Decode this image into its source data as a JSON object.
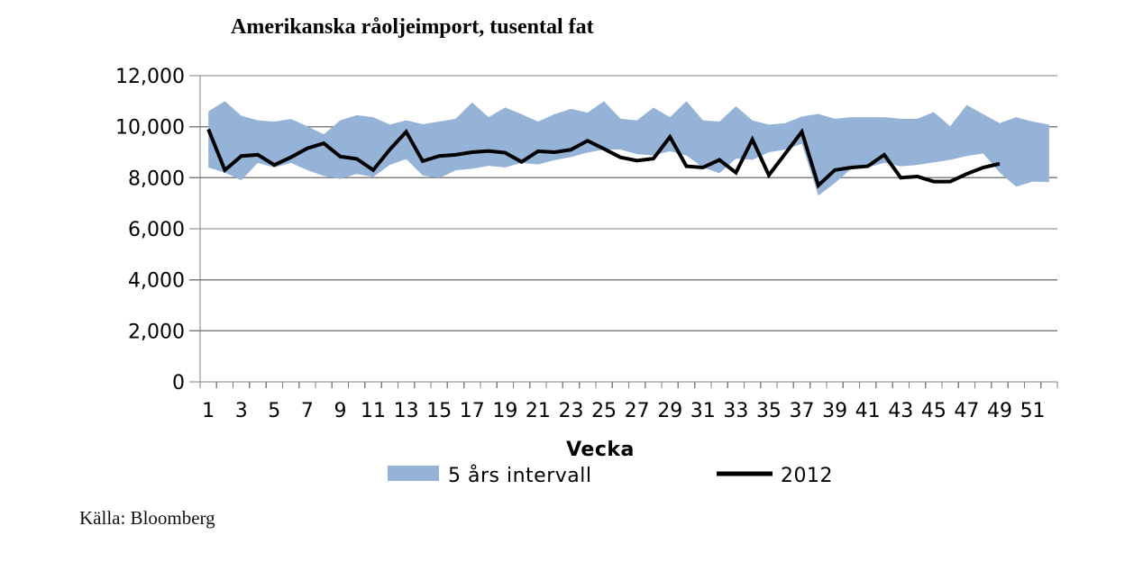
{
  "chart": {
    "title": "Amerikanska råoljeimport, tusental fat",
    "xlabel": "Vecka",
    "ylabel": ""
  },
  "legend": {
    "band_label": "5 års intervall",
    "line_label": "2012"
  },
  "source": "Källa: Bloomberg",
  "colors": {
    "band": "#95B3D7",
    "line": "#000000",
    "axis": "#808080",
    "text": "#000000"
  },
  "chart_data": {
    "type": "area",
    "subtype": "band-with-line",
    "title": "Amerikanska råoljeimport, tusental fat",
    "xlabel": "Vecka",
    "ylabel": "",
    "ylim": [
      0,
      12000
    ],
    "grid": true,
    "legend_position": "bottom",
    "y_ticks": [
      {
        "value": 0,
        "label": "0"
      },
      {
        "value": 2000,
        "label": "2,000"
      },
      {
        "value": 4000,
        "label": "4,000"
      },
      {
        "value": 6000,
        "label": "6,000"
      },
      {
        "value": 8000,
        "label": "8,000"
      },
      {
        "value": 10000,
        "label": "10,000"
      },
      {
        "value": 12000,
        "label": "12,000"
      }
    ],
    "x_tick_labels": [
      "1",
      "3",
      "5",
      "7",
      "9",
      "11",
      "13",
      "15",
      "17",
      "19",
      "21",
      "23",
      "25",
      "27",
      "29",
      "31",
      "33",
      "35",
      "37",
      "39",
      "41",
      "43",
      "45",
      "47",
      "49",
      "51"
    ],
    "x_tick_weeks": [
      1,
      3,
      5,
      7,
      9,
      11,
      13,
      15,
      17,
      19,
      21,
      23,
      25,
      27,
      29,
      31,
      33,
      35,
      37,
      39,
      41,
      43,
      45,
      47,
      49,
      51
    ],
    "weeks": 52,
    "series": [
      {
        "name": "5 års intervall",
        "type": "band",
        "color": "#95B3D7",
        "high": [
          10600,
          11000,
          10430,
          10250,
          10200,
          10300,
          10020,
          9700,
          10250,
          10450,
          10370,
          10080,
          10250,
          10100,
          10200,
          10310,
          10950,
          10370,
          10750,
          10490,
          10200,
          10490,
          10700,
          10550,
          11000,
          10310,
          10250,
          10750,
          10370,
          11000,
          10250,
          10200,
          10800,
          10250,
          10080,
          10140,
          10400,
          10500,
          10310,
          10370,
          10370,
          10370,
          10310,
          10310,
          10570,
          10020,
          10850,
          10490,
          10140,
          10370,
          10200,
          10080
        ],
        "low": [
          8400,
          8200,
          7900,
          8580,
          8400,
          8580,
          8300,
          8070,
          7950,
          8150,
          8030,
          8500,
          8730,
          8090,
          7980,
          8290,
          8350,
          8465,
          8405,
          8580,
          8520,
          8690,
          8810,
          8985,
          9100,
          9100,
          8925,
          8870,
          9040,
          8870,
          8405,
          8175,
          8750,
          8700,
          9000,
          9100,
          9330,
          7300,
          7790,
          8350,
          8405,
          8580,
          8450,
          8500,
          8600,
          8700,
          8850,
          8950,
          8200,
          7650,
          7850,
          7830
        ]
      },
      {
        "name": "2012",
        "type": "line",
        "color": "#000000",
        "values": [
          9900,
          8300,
          8850,
          8900,
          8500,
          8800,
          9150,
          9350,
          8830,
          8740,
          8300,
          9100,
          9800,
          8650,
          8850,
          8900,
          9000,
          9050,
          8980,
          8620,
          9040,
          9000,
          9100,
          9450,
          9130,
          8800,
          8670,
          8750,
          9600,
          8450,
          8400,
          8700,
          8200,
          9500,
          8100,
          8950,
          9800,
          7700,
          8300,
          8400,
          8450,
          8900,
          8000,
          8050,
          7850,
          7850,
          8150,
          8400,
          8550
        ]
      }
    ]
  }
}
